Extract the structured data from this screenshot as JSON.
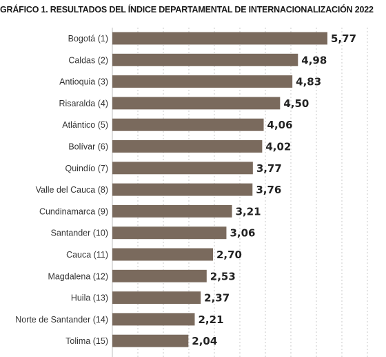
{
  "chart_data": {
    "type": "bar",
    "orientation": "horizontal",
    "title": "GRÁFICO 1. RESULTADOS DEL ÍNDICE DEPARTAMENTAL DE INTERNACIONALIZACIÓN 2022",
    "categories": [
      "Bogotá (1)",
      "Caldas (2)",
      "Antioquia (3)",
      "Risaralda (4)",
      "Atlántico (5)",
      "Bolívar (6)",
      "Quindío (7)",
      "Valle del Cauca (8)",
      "Cundinamarca (9)",
      "Santander (10)",
      "Cauca (11)",
      "Magdalena (12)",
      "Huila (13)",
      "Norte de Santander (14)",
      "Tolima (15)"
    ],
    "values": [
      5.77,
      4.98,
      4.83,
      4.5,
      4.06,
      4.02,
      3.77,
      3.76,
      3.21,
      3.06,
      2.7,
      2.53,
      2.37,
      2.21,
      2.04
    ],
    "value_labels": [
      "5,77",
      "4,98",
      "4,83",
      "4,50",
      "4,06",
      "4,02",
      "3,77",
      "3,76",
      "3,21",
      "3,06",
      "2,70",
      "2,53",
      "2,37",
      "2,21",
      "2,04"
    ],
    "xlim": [
      0,
      5.77
    ],
    "grid": "vertical-dashed",
    "bar_color": "#7a6a5d",
    "grid_color": "#c8c8c8"
  }
}
